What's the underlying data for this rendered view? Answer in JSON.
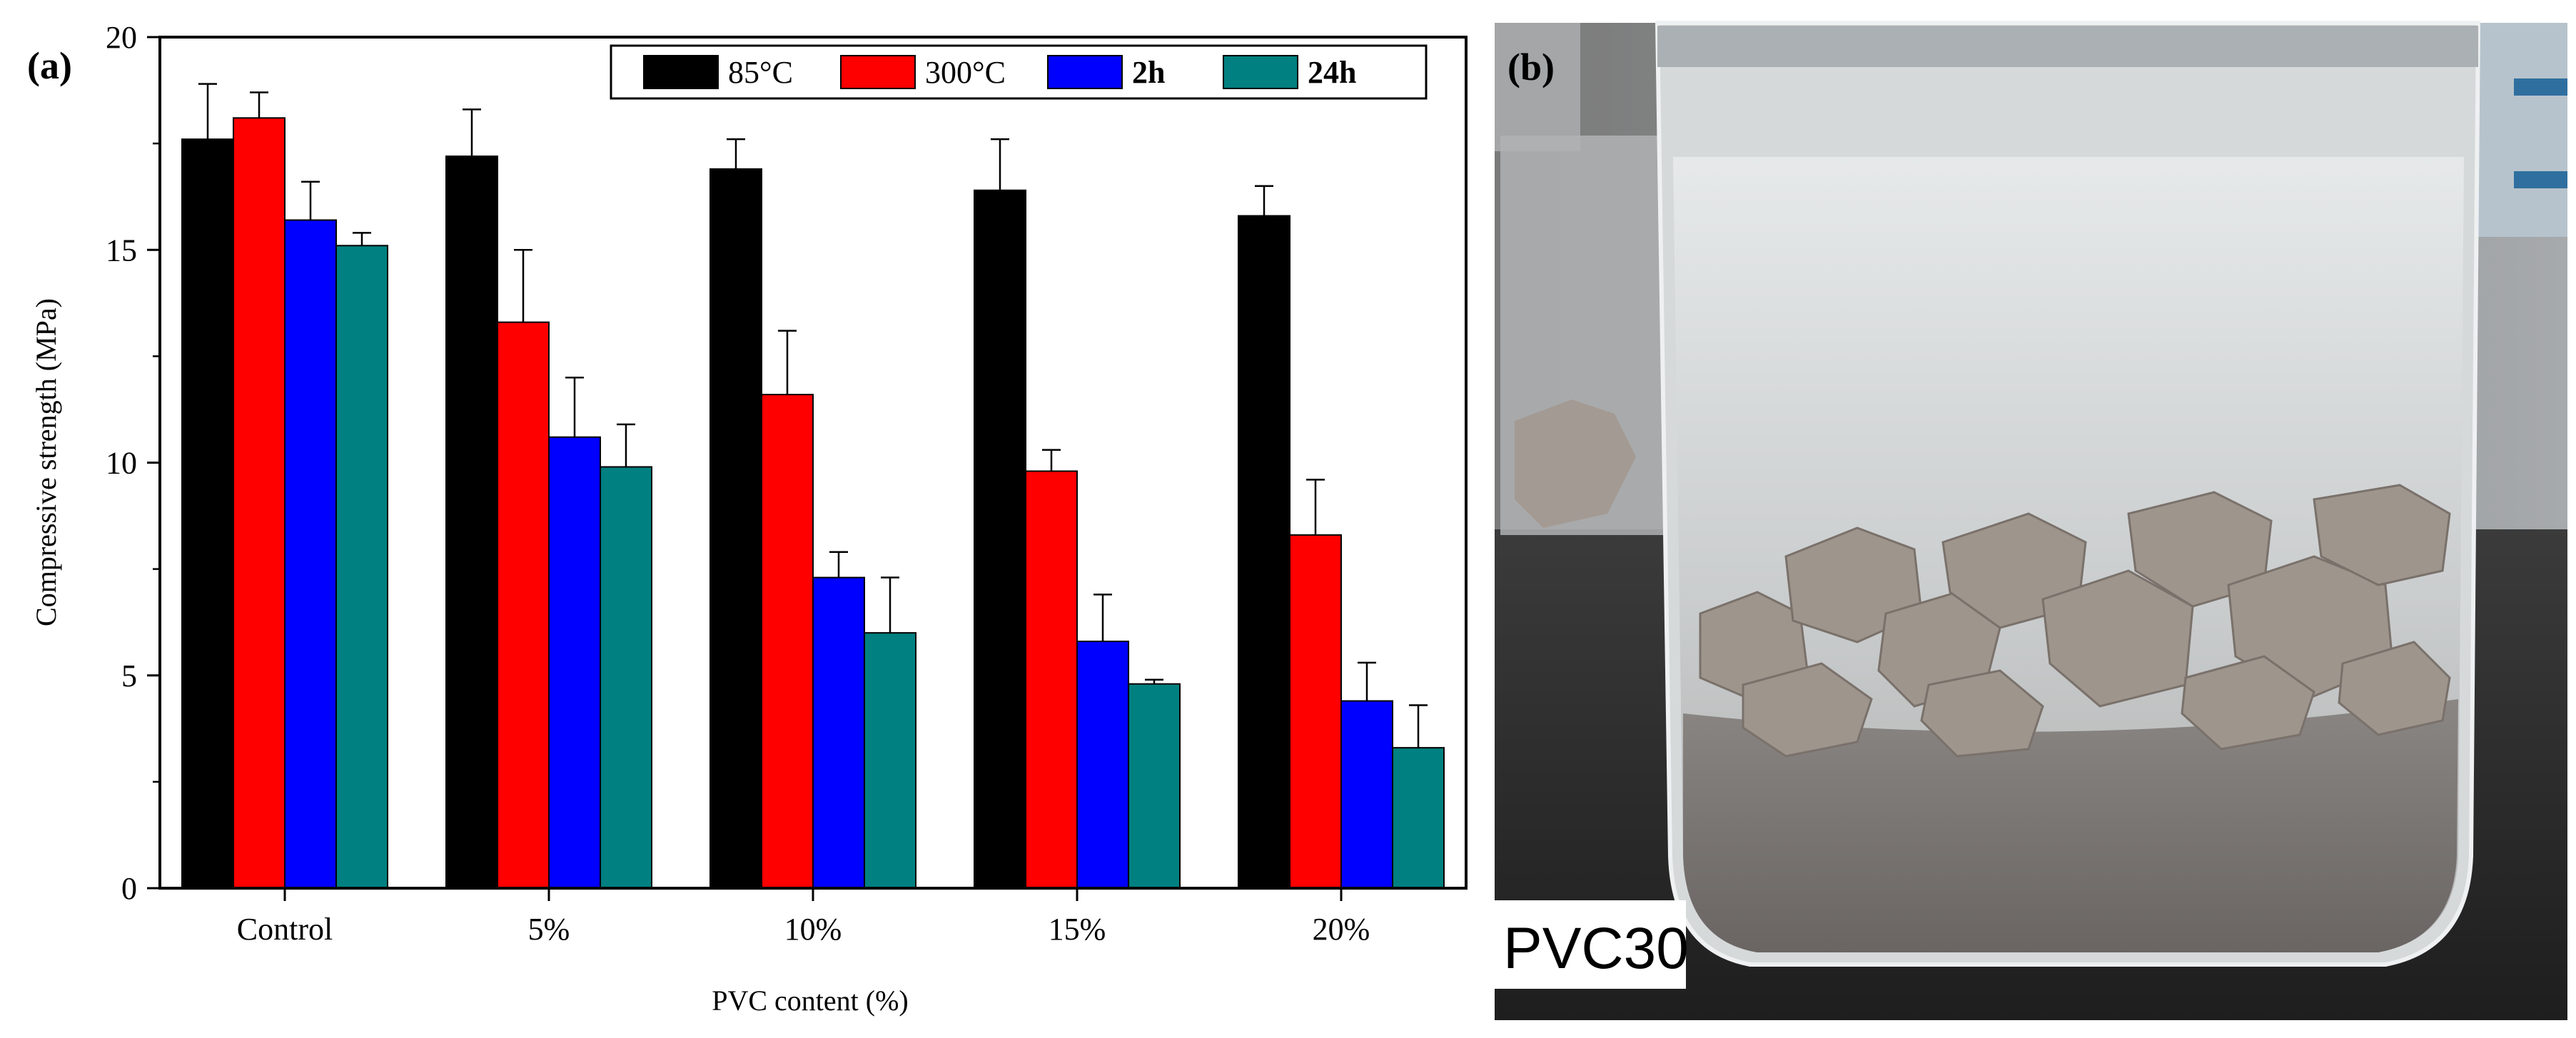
{
  "panel_a_label": "(a)",
  "panel_b_label": "(b)",
  "photo": {
    "caption": "PVC30",
    "subject": "glass beaker with grey crushed aggregate pieces submerged in clear liquid over grey sediment",
    "colors": {
      "background": "#6e6e6e",
      "glass": "#d9dcdd",
      "liquid": "#c7cacb",
      "aggregate": "#9a9089",
      "sediment": "#7b7775",
      "bench": "#2e2e2e"
    }
  },
  "chart_data": {
    "type": "bar",
    "title": "",
    "xlabel": "PVC content (%)",
    "ylabel": "Compressive strength (MPa)",
    "categories": [
      "Control",
      "5%",
      "10%",
      "15%",
      "20%"
    ],
    "ylim": [
      0,
      20
    ],
    "yticks": [
      0,
      5,
      10,
      15,
      20
    ],
    "grid": false,
    "legend_position": "top-right",
    "series": [
      {
        "name": "85°C",
        "color": "#000000",
        "values": [
          17.6,
          17.2,
          16.9,
          16.4,
          15.8
        ],
        "errors": [
          1.3,
          1.1,
          0.7,
          1.2,
          0.7
        ]
      },
      {
        "name": "300°C",
        "color": "#ff0000",
        "values": [
          18.1,
          13.3,
          11.6,
          9.8,
          8.3
        ],
        "errors": [
          0.6,
          1.7,
          1.5,
          0.5,
          1.3
        ]
      },
      {
        "name": "2h",
        "color": "#0000ff",
        "values": [
          15.7,
          10.6,
          7.3,
          5.8,
          4.4
        ],
        "errors": [
          0.9,
          1.4,
          0.6,
          1.1,
          0.9
        ]
      },
      {
        "name": "24h",
        "color": "#008080",
        "values": [
          15.1,
          9.9,
          6.0,
          4.8,
          3.3
        ],
        "errors": [
          0.3,
          1.0,
          1.3,
          0.1,
          1.0
        ]
      }
    ]
  }
}
